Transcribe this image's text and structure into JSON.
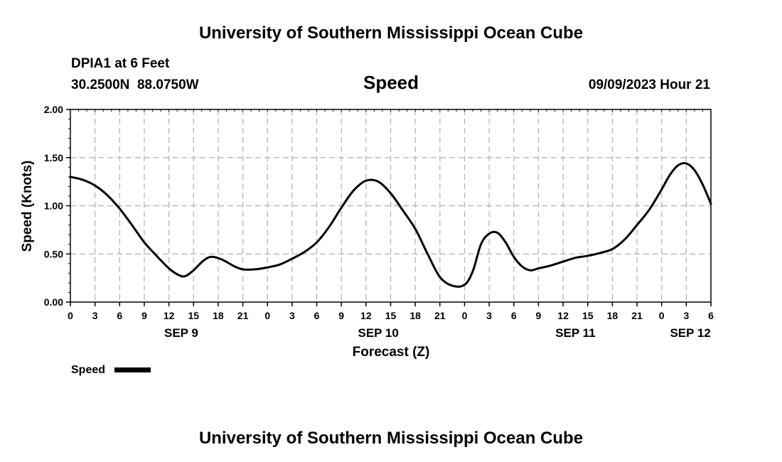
{
  "header": {
    "title": "University of Southern Mississippi Ocean Cube",
    "station": "DPIA1 at 6 Feet",
    "coords": "30.2500N  88.0750W",
    "variable": "Speed",
    "timestamp": "09/09/2023 Hour 21"
  },
  "footer": {
    "title": "University of Southern Mississippi Ocean Cube"
  },
  "legend": {
    "label": "Speed"
  },
  "colors": {
    "line": "#000000",
    "grid": "#b0b0b0",
    "background": "#ffffff"
  },
  "chart_data": {
    "type": "line",
    "title": "Speed",
    "xlabel": "Forecast (Z)",
    "ylabel": "Speed (Knots)",
    "ylim": [
      0,
      2
    ],
    "xlim": [
      0,
      78
    ],
    "x_unit": "hours from 00Z SEP 9",
    "y_ticks": [
      "0.00",
      "0.50",
      "1.00",
      "1.50",
      "2.00"
    ],
    "x_ticks": [
      "0",
      "3",
      "6",
      "9",
      "12",
      "15",
      "18",
      "21",
      "0",
      "3",
      "6",
      "9",
      "12",
      "15",
      "18",
      "21",
      "0",
      "3",
      "6",
      "9",
      "12",
      "15",
      "18",
      "21",
      "0",
      "3",
      "6"
    ],
    "day_labels": [
      {
        "label": "SEP 9",
        "hour": 13.5
      },
      {
        "label": "SEP 10",
        "hour": 37.5
      },
      {
        "label": "SEP 11",
        "hour": 61.5
      },
      {
        "label": "SEP 12",
        "hour": 75.5
      }
    ],
    "grid": true,
    "legend_position": "bottom-left",
    "series": [
      {
        "name": "Speed",
        "x": [
          0,
          1.5,
          3,
          4.5,
          6,
          7.5,
          9,
          10.5,
          12,
          13.2,
          14,
          15,
          16.2,
          17.2,
          18.5,
          20,
          21,
          22.5,
          24,
          25.5,
          27,
          28.5,
          30,
          31.5,
          33,
          34.5,
          36,
          37.5,
          39,
          40.5,
          42,
          43.5,
          45,
          46.5,
          48,
          49,
          50,
          51,
          52,
          53,
          54,
          55,
          56,
          57,
          58.5,
          60,
          61.5,
          63,
          64.5,
          66,
          67.5,
          69,
          70.5,
          72,
          73,
          74,
          75,
          76,
          77,
          78
        ],
        "y": [
          1.3,
          1.27,
          1.21,
          1.11,
          0.97,
          0.8,
          0.62,
          0.48,
          0.35,
          0.28,
          0.27,
          0.33,
          0.43,
          0.47,
          0.44,
          0.37,
          0.34,
          0.34,
          0.36,
          0.39,
          0.45,
          0.52,
          0.62,
          0.78,
          0.98,
          1.16,
          1.26,
          1.25,
          1.13,
          0.95,
          0.76,
          0.5,
          0.26,
          0.17,
          0.18,
          0.32,
          0.6,
          0.71,
          0.72,
          0.62,
          0.47,
          0.37,
          0.33,
          0.35,
          0.38,
          0.42,
          0.46,
          0.48,
          0.51,
          0.55,
          0.65,
          0.8,
          0.96,
          1.17,
          1.32,
          1.42,
          1.44,
          1.37,
          1.22,
          1.02
        ]
      }
    ]
  }
}
